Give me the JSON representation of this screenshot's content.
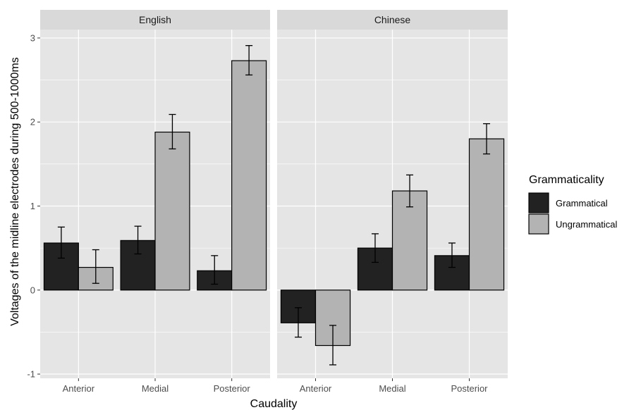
{
  "chart_data": {
    "type": "bar",
    "facets": [
      "English",
      "Chinese"
    ],
    "categories": [
      "Anterior",
      "Medial",
      "Posterior"
    ],
    "xlabel": "Caudality",
    "ylabel": "Voltages of the midline electrodes during 500-1000ms",
    "ylim": [
      -1.05,
      3.1
    ],
    "yticks": [
      -1,
      0,
      1,
      2,
      3
    ],
    "yticks_labels": [
      "-1",
      "0",
      "1",
      "2",
      "3"
    ],
    "grid": true,
    "legend": {
      "title": "Grammaticality",
      "position": "right",
      "entries": [
        "Grammatical",
        "Ungrammatical"
      ]
    },
    "colors": {
      "Grammatical": "#222222",
      "Ungrammatical": "#b3b3b3",
      "panel": "#e5e5e5",
      "strip": "#d9d9d9"
    },
    "panels": [
      {
        "facet": "English",
        "series": [
          {
            "name": "Grammatical",
            "values": [
              0.56,
              0.59,
              0.23
            ],
            "lower": [
              0.38,
              0.43,
              0.07
            ],
            "upper": [
              0.75,
              0.76,
              0.41
            ]
          },
          {
            "name": "Ungrammatical",
            "values": [
              0.27,
              1.88,
              2.73
            ],
            "lower": [
              0.08,
              1.68,
              2.56
            ],
            "upper": [
              0.48,
              2.09,
              2.91
            ]
          }
        ]
      },
      {
        "facet": "Chinese",
        "series": [
          {
            "name": "Grammatical",
            "values": [
              -0.39,
              0.5,
              0.41
            ],
            "lower": [
              -0.56,
              0.33,
              0.27
            ],
            "upper": [
              -0.21,
              0.67,
              0.56
            ]
          },
          {
            "name": "Ungrammatical",
            "values": [
              -0.66,
              1.18,
              1.8
            ],
            "lower": [
              -0.89,
              0.99,
              1.62
            ],
            "upper": [
              -0.42,
              1.37,
              1.98
            ]
          }
        ]
      }
    ]
  }
}
